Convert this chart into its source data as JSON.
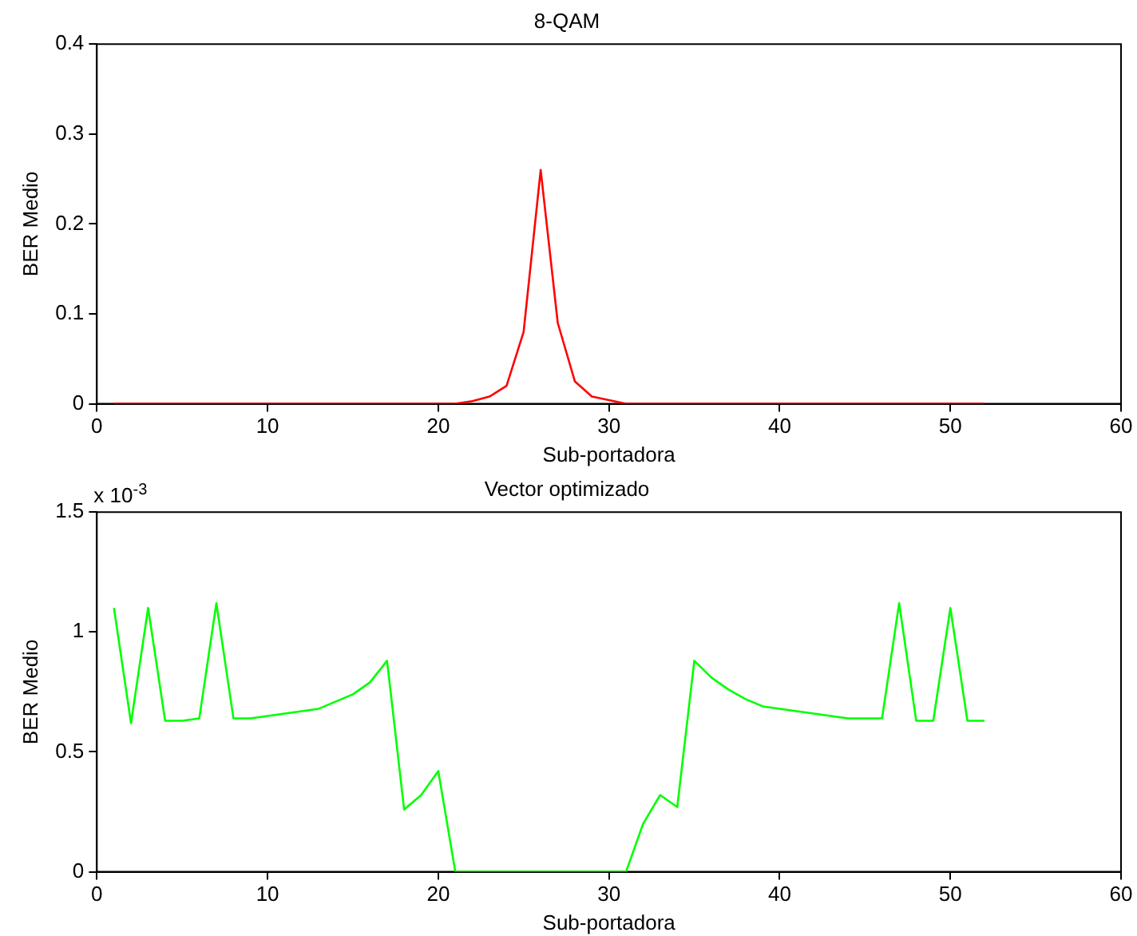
{
  "chart_data": [
    {
      "type": "line",
      "title": "8-QAM",
      "xlabel": "Sub-portadora",
      "ylabel": "BER Medio",
      "x": [
        1,
        2,
        3,
        4,
        5,
        6,
        7,
        8,
        9,
        10,
        11,
        12,
        13,
        14,
        15,
        16,
        17,
        18,
        19,
        20,
        21,
        22,
        23,
        24,
        25,
        26,
        27,
        28,
        29,
        30,
        31,
        32,
        33,
        34,
        35,
        36,
        37,
        38,
        39,
        40,
        41,
        42,
        43,
        44,
        45,
        46,
        47,
        48,
        49,
        50,
        51,
        52
      ],
      "series": [
        {
          "color": "#ff0000",
          "values": [
            0,
            0,
            0,
            0,
            0,
            0,
            0,
            0,
            0,
            0,
            0,
            0,
            0,
            0,
            0,
            0,
            0,
            0,
            0,
            0,
            0,
            0.003,
            0.008,
            0.02,
            0.08,
            0.26,
            0.09,
            0.025,
            0.008,
            0.004,
            0,
            0,
            0,
            0,
            0,
            0,
            0,
            0,
            0,
            0,
            0,
            0,
            0,
            0,
            0,
            0,
            0,
            0,
            0,
            0,
            0,
            0
          ]
        }
      ],
      "xlim": [
        0,
        60
      ],
      "xticks": [
        0,
        10,
        20,
        30,
        40,
        50,
        60
      ],
      "ylim": [
        0,
        0.4
      ],
      "yticks": [
        0,
        0.1,
        0.2,
        0.3,
        0.4
      ],
      "grid": false,
      "legend": false,
      "marker": "none",
      "line_style": "solid"
    },
    {
      "type": "line",
      "title": "Vector optimizado",
      "xlabel": "Sub-portadora",
      "ylabel": "BER Medio",
      "annotations": [
        "x 10$^{-3}$"
      ],
      "x": [
        1,
        2,
        3,
        4,
        5,
        6,
        7,
        8,
        9,
        10,
        11,
        12,
        13,
        14,
        15,
        16,
        17,
        18,
        19,
        20,
        21,
        22,
        23,
        24,
        25,
        26,
        27,
        28,
        29,
        30,
        31,
        32,
        33,
        34,
        35,
        36,
        37,
        38,
        39,
        40,
        41,
        42,
        43,
        44,
        45,
        46,
        47,
        48,
        49,
        50,
        51,
        52
      ],
      "series": [
        {
          "color": "#00ff00",
          "values": [
            1.1,
            0.62,
            1.1,
            0.63,
            0.63,
            0.64,
            1.12,
            0.64,
            0.64,
            0.65,
            0.66,
            0.67,
            0.68,
            0.71,
            0.74,
            0.79,
            0.88,
            0.26,
            0.32,
            0.42,
            0,
            0,
            0,
            0,
            0,
            0,
            0,
            0,
            0,
            0,
            0,
            0.2,
            0.32,
            0.27,
            0.88,
            0.81,
            0.76,
            0.72,
            0.69,
            0.68,
            0.67,
            0.66,
            0.65,
            0.64,
            0.64,
            0.64,
            1.12,
            0.63,
            0.63,
            1.1,
            0.63,
            0.63
          ]
        }
      ],
      "xlim": [
        0,
        60
      ],
      "xticks": [
        0,
        10,
        20,
        30,
        40,
        50,
        60
      ],
      "ylim": [
        0,
        1.5
      ],
      "yticks": [
        0,
        0.5,
        1,
        1.5
      ],
      "grid": false,
      "legend": false,
      "marker": "none",
      "line_style": "solid"
    }
  ]
}
